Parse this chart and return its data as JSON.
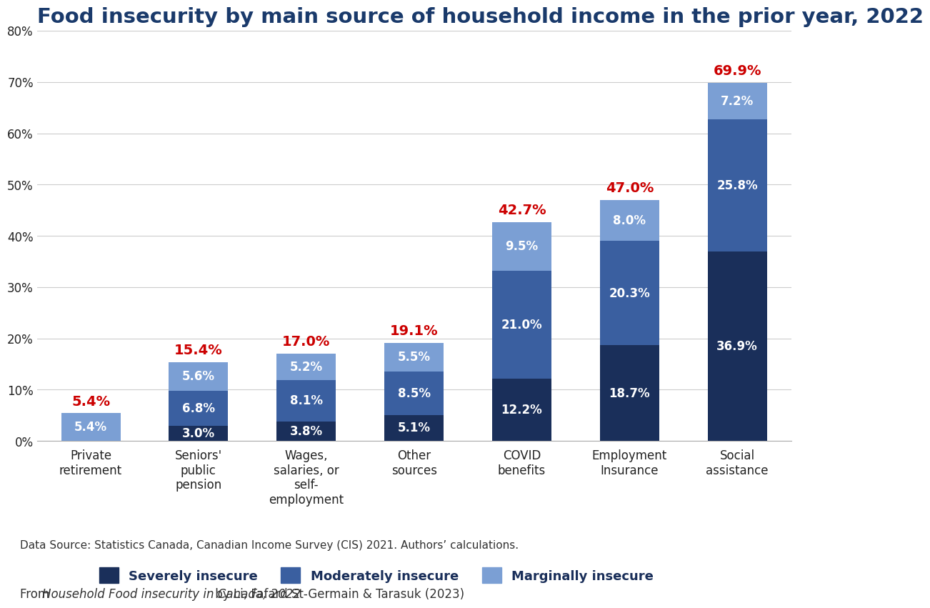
{
  "title": "Food insecurity by main source of household income in the prior year, 2022",
  "categories": [
    "Private\nretirement",
    "Seniors'\npublic\npension",
    "Wages,\nsalaries, or\nself-\nemployment",
    "Other\nsources",
    "COVID\nbenefits",
    "Employment\nInsurance",
    "Social\nassistance"
  ],
  "severely_insecure": [
    0.0,
    3.0,
    3.8,
    5.1,
    12.2,
    18.7,
    36.9
  ],
  "moderately_insecure": [
    0.0,
    6.8,
    8.1,
    8.5,
    21.0,
    20.3,
    25.8
  ],
  "marginally_insecure": [
    5.4,
    5.6,
    5.2,
    5.5,
    9.5,
    8.0,
    7.2
  ],
  "totals": [
    5.4,
    15.4,
    17.0,
    19.1,
    42.7,
    47.0,
    69.9
  ],
  "color_severely": "#1a2f5a",
  "color_moderately": "#3a5fa0",
  "color_marginally": "#7b9fd4",
  "color_total_label": "#cc0000",
  "ylim": [
    0,
    80
  ],
  "yticks": [
    0,
    10,
    20,
    30,
    40,
    50,
    60,
    70,
    80
  ],
  "legend_labels": [
    "Severely insecure",
    "Moderately insecure",
    "Marginally insecure"
  ],
  "data_source": "Data Source: Statistics Canada, Canadian Income Survey (CIS) 2021. Authors’ calculations.",
  "citation_normal": "From ",
  "citation_italic": "Household Food insecurity in Canada, 2022",
  "citation_rest": " by Li, Fafard St-Germain & Tarasuk (2023)",
  "background_color": "#ffffff",
  "title_color": "#1a3a6b",
  "title_fontsize": 21,
  "tick_fontsize": 12,
  "legend_fontsize": 13,
  "annotation_fontsize": 12,
  "total_label_fontsize": 14,
  "datasource_fontsize": 11,
  "citation_fontsize": 12
}
